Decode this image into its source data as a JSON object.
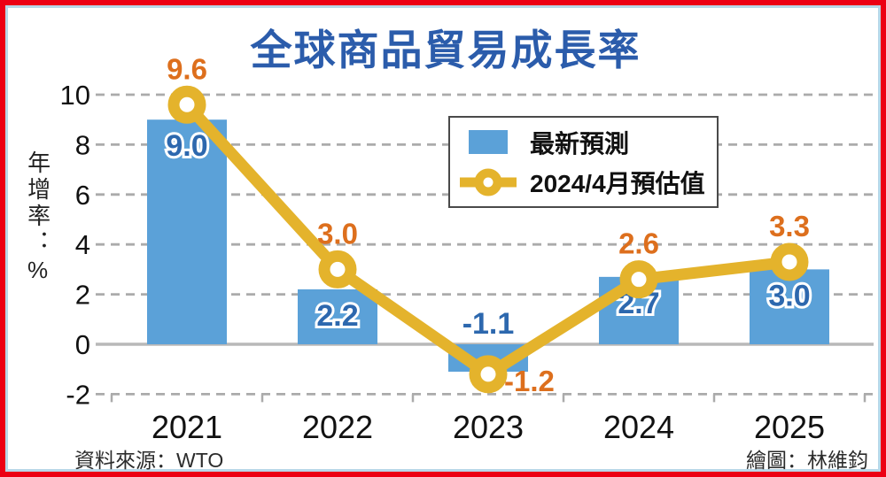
{
  "title": {
    "text": "全球商品貿易成長率",
    "color": "#2b5cab"
  },
  "chart_data": {
    "type": "bar+line combo",
    "categories": [
      "2021",
      "2022",
      "2023",
      "2024",
      "2025"
    ],
    "series": [
      {
        "name": "最新預測",
        "type": "bar",
        "color": "#5ba1d8",
        "label_color": "#2d68ae",
        "values": [
          9.0,
          2.2,
          -1.1,
          2.7,
          3.0
        ]
      },
      {
        "name": "2024/4月預估值",
        "type": "line",
        "color": "#e4b32c",
        "label_color": "#dd6f1d",
        "values": [
          9.6,
          3.0,
          -1.2,
          2.6,
          3.3
        ]
      }
    ],
    "ylabel": "年增率：%",
    "yticks": [
      10,
      8,
      6,
      4,
      2,
      0,
      -2
    ],
    "ylim": [
      -2,
      10
    ],
    "grid": "horizontal-dashed",
    "grid_color": "#ababab",
    "zero_line_color": "#b8b8b8",
    "legend_position": "inside-top-right"
  },
  "footer": {
    "source": "資料來源：WTO",
    "credit": "繪圖：林維鈞"
  },
  "frame": {
    "outer_border_color": "#ec0014",
    "inner_border_color": "#b8d7e8"
  }
}
